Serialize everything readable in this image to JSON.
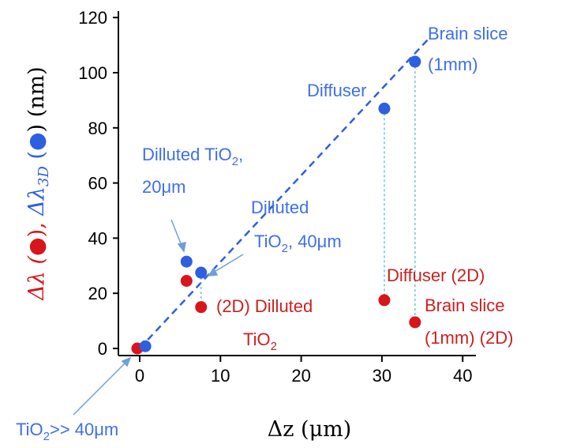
{
  "colors": {
    "red": "#d8151b",
    "blue": "#2d5fe0",
    "lightblue": "#5ab4e8",
    "annblue": "#3f6fe8",
    "annred": "#cc1f1f",
    "arrow": "#6f9ed8"
  },
  "chart_data": {
    "type": "scatter",
    "title": "",
    "xlabel": "Δz (μm)",
    "ylabel_parts": {
      "red_prefix": "Δλ (",
      "red_suffix": "),",
      "blue_prefix": "Δλ",
      "blue_sub": "3D",
      "blue_suffix": " (",
      "end": ") (nm)"
    },
    "xlim": [
      -2,
      42
    ],
    "ylim": [
      -3,
      120
    ],
    "x_ticks": [
      "0",
      "10",
      "20",
      "30",
      "40"
    ],
    "x_tick_values": [
      0,
      10,
      20,
      30,
      40
    ],
    "y_ticks": [
      "0",
      "20",
      "40",
      "60",
      "80",
      "100",
      "120"
    ],
    "y_tick_values": [
      0,
      20,
      40,
      60,
      80,
      100,
      120
    ],
    "series": [
      {
        "marker": "red",
        "points": [
          [
            -0.3,
            0
          ],
          [
            5.8,
            24.5
          ],
          [
            7.6,
            15
          ],
          [
            30.3,
            17.5
          ],
          [
            34.1,
            9.5
          ]
        ]
      },
      {
        "marker": "blue",
        "points": [
          [
            0.7,
            0.8
          ],
          [
            5.8,
            31.5
          ],
          [
            7.6,
            27.5
          ],
          [
            30.3,
            87
          ],
          [
            34.1,
            104
          ]
        ]
      }
    ],
    "fit_line": {
      "x": [
        0,
        36
      ],
      "y": [
        0,
        113
      ]
    },
    "droplines": [
      {
        "x": 7.6,
        "y_from": 27.5,
        "y_to": 15
      },
      {
        "x": 30.3,
        "y_from": 87,
        "y_to": 17.5
      },
      {
        "x": 34.1,
        "y_from": 104,
        "y_to": 9.5
      }
    ],
    "annotations": {
      "brain_slice_1": "Brain slice",
      "brain_slice_2": "(1mm)",
      "diffuser": "Diffuser",
      "dilluted20_1a": "Dilluted TiO",
      "dilluted20_1sub": "2",
      "dilluted20_1b": ",",
      "dilluted20_2": "20μm",
      "dilluted40_1": "Dilluted",
      "dilluted40_2a": "TiO",
      "dilluted40_2sub": "2",
      "dilluted40_2b": ", 40μm",
      "diffuser2d": "Diffuser (2D)",
      "brain2d_1": "Brain slice",
      "brain2d_2": "(1mm) (2D)",
      "dilluted2d_1": "(2D) Dilluted",
      "dilluted2d_2a": "TiO",
      "dilluted2d_2sub": "2",
      "tio2_a": "TiO",
      "tio2_sub": "2",
      "tio2_b": ">> 40μm"
    }
  }
}
